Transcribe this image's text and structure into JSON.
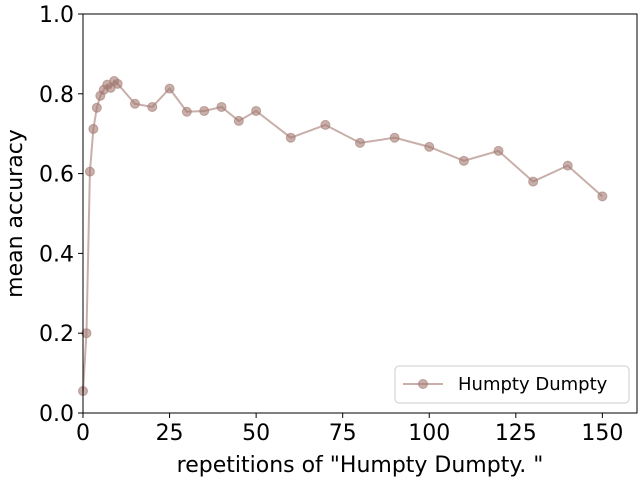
{
  "chart_data": {
    "type": "line",
    "title": "",
    "xlabel": "repetitions of \"Humpty Dumpty. \"",
    "ylabel": "mean accuracy",
    "xlim": [
      0,
      160
    ],
    "ylim": [
      0.0,
      1.0
    ],
    "x_ticks": [
      0,
      25,
      50,
      75,
      100,
      125,
      150
    ],
    "y_ticks": [
      0.0,
      0.2,
      0.4,
      0.6,
      0.8,
      1.0
    ],
    "x_tick_labels": [
      "0",
      "25",
      "50",
      "75",
      "100",
      "125",
      "150"
    ],
    "y_tick_labels": [
      "0.0",
      "0.2",
      "0.4",
      "0.6",
      "0.8",
      "1.0"
    ],
    "grid": false,
    "legend_position": "lower-right",
    "series": [
      {
        "name": "Humpty Dumpty",
        "color": "#a47a72",
        "x": [
          0,
          1,
          2,
          3,
          4,
          5,
          6,
          7,
          8,
          9,
          10,
          15,
          20,
          25,
          30,
          35,
          40,
          45,
          50,
          60,
          70,
          80,
          90,
          100,
          110,
          120,
          130,
          140,
          150
        ],
        "y": [
          0.055,
          0.2,
          0.605,
          0.712,
          0.765,
          0.795,
          0.81,
          0.823,
          0.815,
          0.832,
          0.825,
          0.775,
          0.767,
          0.813,
          0.755,
          0.757,
          0.767,
          0.732,
          0.757,
          0.69,
          0.722,
          0.677,
          0.69,
          0.667,
          0.632,
          0.657,
          0.58,
          0.62,
          0.543
        ]
      }
    ]
  }
}
